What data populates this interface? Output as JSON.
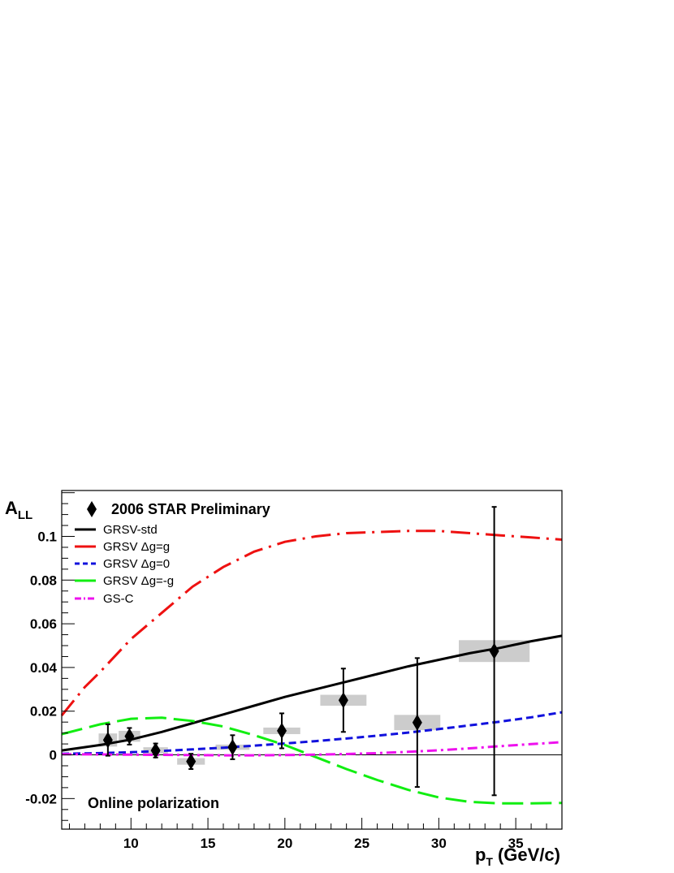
{
  "chart_data": {
    "type": "scatter",
    "xlabel": "p",
    "xlabel_sub": "T",
    "xlabel_units": "(GeV/c)",
    "ylabel": "A",
    "ylabel_sub": "LL",
    "xlim": [
      5.5,
      38
    ],
    "ylim": [
      -0.034,
      0.121
    ],
    "x_ticks": [
      10,
      15,
      20,
      25,
      30,
      35
    ],
    "y_ticks": [
      -0.02,
      0,
      0.02,
      0.04,
      0.06,
      0.08,
      0.1
    ],
    "x_tick_labels": [
      "10",
      "15",
      "20",
      "25",
      "30",
      "35"
    ],
    "y_tick_labels": [
      "-0.02",
      "0",
      "0.02",
      "0.04",
      "0.06",
      "0.08",
      "0.1"
    ],
    "legend_placement": "top-left",
    "annotation": "Online polarization",
    "data_series": {
      "name": "2006 STAR Preliminary",
      "marker": "diamond",
      "color": "#000000",
      "points": [
        {
          "x": 8.5,
          "y": 0.0068,
          "err": 0.0072,
          "sys": 0.003,
          "sys_half_width": 0.6
        },
        {
          "x": 9.9,
          "y": 0.0085,
          "err": 0.0038,
          "sys": 0.0025,
          "sys_half_width": 0.7
        },
        {
          "x": 11.6,
          "y": 0.002,
          "err": 0.0032,
          "sys": 0.0015,
          "sys_half_width": 0.8
        },
        {
          "x": 13.9,
          "y": -0.003,
          "err": 0.0035,
          "sys": 0.0015,
          "sys_half_width": 0.9
        },
        {
          "x": 16.6,
          "y": 0.0035,
          "err": 0.0055,
          "sys": 0.0012,
          "sys_half_width": 1.1
        },
        {
          "x": 19.8,
          "y": 0.011,
          "err": 0.008,
          "sys": 0.0015,
          "sys_half_width": 1.2
        },
        {
          "x": 23.8,
          "y": 0.025,
          "err": 0.0145,
          "sys": 0.0025,
          "sys_half_width": 1.5
        },
        {
          "x": 28.6,
          "y": 0.0148,
          "err": 0.0295,
          "sys": 0.0035,
          "sys_half_width": 1.5
        },
        {
          "x": 33.6,
          "y": 0.0475,
          "err": 0.066,
          "sys": 0.005,
          "sys_half_width": 2.3
        }
      ]
    },
    "series": [
      {
        "name": "GRSV-std",
        "color": "#000000",
        "dash": "solid",
        "x": [
          5.5,
          8,
          10,
          12,
          14,
          16,
          18,
          20,
          22,
          24,
          26,
          28,
          30,
          32,
          34,
          36,
          38
        ],
        "y": [
          0.002,
          0.0045,
          0.007,
          0.0105,
          0.0145,
          0.0185,
          0.0225,
          0.0265,
          0.03,
          0.0335,
          0.037,
          0.0405,
          0.0435,
          0.0465,
          0.049,
          0.052,
          0.0545
        ]
      },
      {
        "name": "GRSV Δg=g",
        "color": "#ee1111",
        "dash": "longdashdot",
        "x": [
          5.5,
          7,
          8,
          10,
          12,
          14,
          16,
          18,
          20,
          22,
          24,
          26,
          28,
          30,
          32,
          34,
          36,
          38
        ],
        "y": [
          0.018,
          0.031,
          0.038,
          0.053,
          0.065,
          0.077,
          0.086,
          0.093,
          0.0975,
          0.1,
          0.1015,
          0.102,
          0.1025,
          0.1025,
          0.1015,
          0.1005,
          0.0995,
          0.0985
        ]
      },
      {
        "name": "GRSV Δg=0",
        "color": "#1111dd",
        "dash": "dashed",
        "x": [
          5.5,
          8,
          10,
          12,
          14,
          16,
          18,
          20,
          22,
          24,
          26,
          28,
          30,
          32,
          34,
          36,
          38
        ],
        "y": [
          0.0005,
          0.0008,
          0.0012,
          0.0018,
          0.0025,
          0.0033,
          0.0042,
          0.0052,
          0.0063,
          0.0075,
          0.0088,
          0.0102,
          0.0118,
          0.0135,
          0.0152,
          0.0172,
          0.0195
        ]
      },
      {
        "name": "GRSV Δg=-g",
        "color": "#11ee11",
        "dash": "longdash",
        "x": [
          5.5,
          8,
          10,
          12,
          14,
          16,
          18,
          20,
          22,
          24,
          26,
          28,
          30,
          32,
          34,
          36,
          38
        ],
        "y": [
          0.0095,
          0.014,
          0.0165,
          0.017,
          0.0155,
          0.013,
          0.009,
          0.0045,
          -0.001,
          -0.0065,
          -0.0115,
          -0.016,
          -0.0195,
          -0.0215,
          -0.0222,
          -0.0222,
          -0.022
        ]
      },
      {
        "name": "GS-C",
        "color": "#ee11ee",
        "dash": "dashdot",
        "x": [
          5.5,
          8,
          10,
          12,
          14,
          16,
          18,
          20,
          22,
          24,
          26,
          28,
          30,
          32,
          34,
          36,
          38
        ],
        "y": [
          0.0003,
          0.0002,
          0.0001,
          0.0,
          -0.0001,
          -0.0002,
          -0.0002,
          -0.0001,
          0.0001,
          0.0004,
          0.0008,
          0.0014,
          0.0021,
          0.003,
          0.004,
          0.0049,
          0.0058
        ]
      }
    ]
  }
}
